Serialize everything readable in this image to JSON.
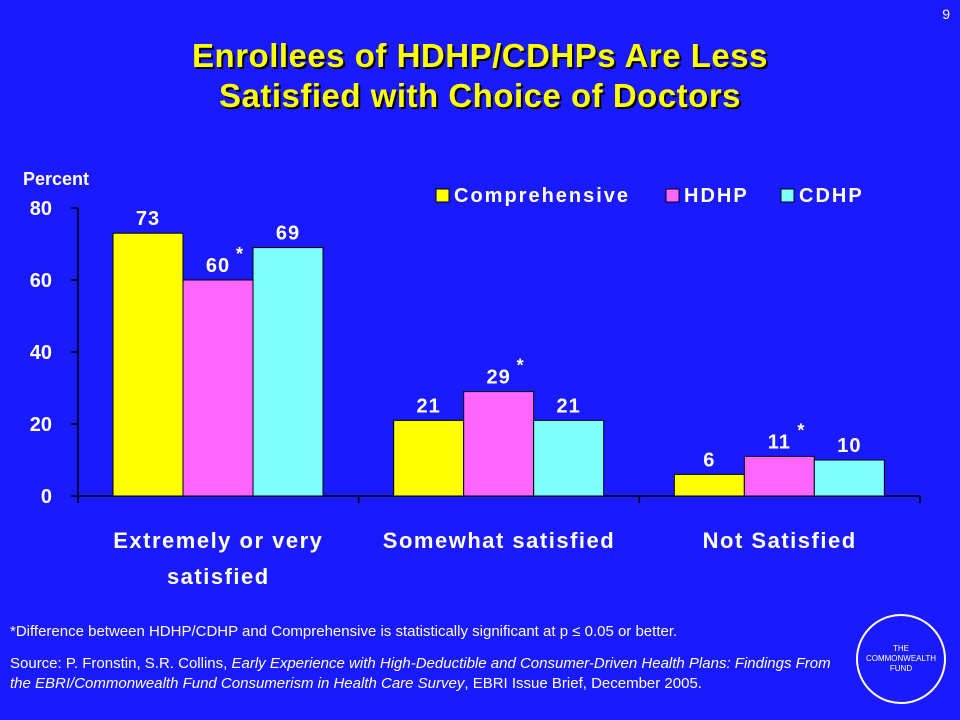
{
  "slide_number": "9",
  "title_line1": "Enrollees of HDHP/CDHPs Are Less",
  "title_line2": "Satisfied with Choice of Doctors",
  "footnote": "*Difference between HDHP/CDHP and Comprehensive is statistically significant at p ≤ 0.05 or better.",
  "source": {
    "prefix": "Source: P. Fronstin, S.R. Collins, ",
    "italic": "Early Experience with High-Deductible and Consumer-Driven Health Plans: Findings From the EBRI/Commonwealth Fund Consumerism in Health Care Survey",
    "suffix": ", EBRI Issue Brief, December 2005."
  },
  "logo": {
    "line1": "THE",
    "line2": "COMMONWEALTH",
    "line3": "FUND"
  },
  "colors": {
    "background": "#1a1aff",
    "title": "#ffff00",
    "text": "#ffffff",
    "bar_outline": "#000000"
  },
  "chart_data": {
    "type": "bar",
    "ylabel": "Percent",
    "xlabel": "",
    "ylim": [
      0,
      80
    ],
    "yticks": [
      0,
      20,
      40,
      60,
      80
    ],
    "categories": [
      [
        "Extremely or very",
        "satisfied"
      ],
      [
        "Somewhat satisfied"
      ],
      [
        "Not Satisfied"
      ]
    ],
    "series": [
      {
        "name": "Comprehensive",
        "color": "#ffff00",
        "values": [
          73,
          21,
          6
        ],
        "significant": [
          false,
          false,
          false
        ]
      },
      {
        "name": "HDHP",
        "color": "#ff66ff",
        "values": [
          60,
          29,
          11
        ],
        "significant": [
          true,
          true,
          true
        ]
      },
      {
        "name": "CDHP",
        "color": "#80ffff",
        "values": [
          69,
          21,
          10
        ],
        "significant": [
          false,
          false,
          false
        ]
      }
    ],
    "significance_marker": "*",
    "legend_position": "top-right",
    "grid": false
  }
}
